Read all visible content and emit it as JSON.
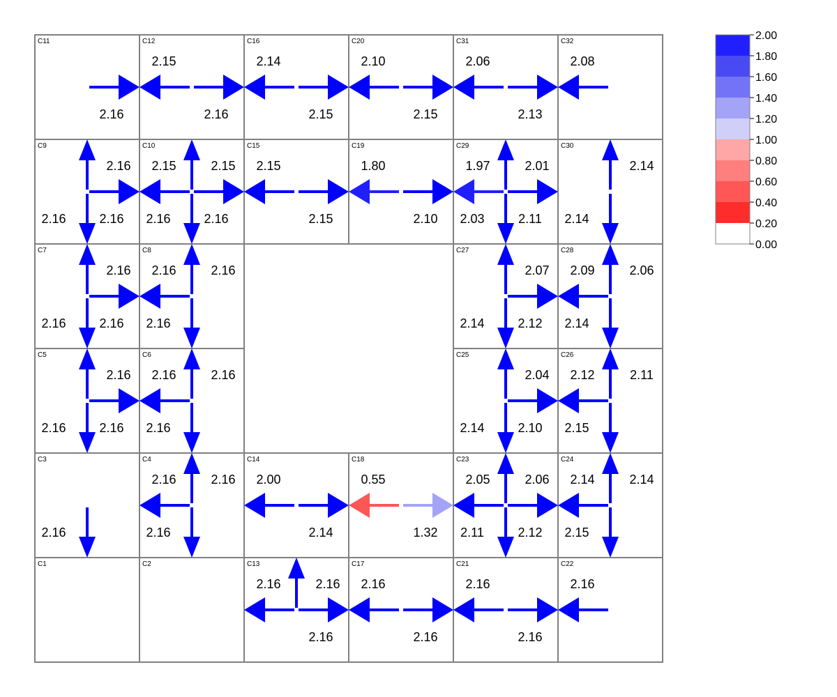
{
  "cells": [
    {
      "id": "C11",
      "col": 0,
      "row": 0
    },
    {
      "id": "C12",
      "col": 1,
      "row": 0
    },
    {
      "id": "C16",
      "col": 2,
      "row": 0
    },
    {
      "id": "C20",
      "col": 3,
      "row": 0
    },
    {
      "id": "C31",
      "col": 4,
      "row": 0
    },
    {
      "id": "C32",
      "col": 5,
      "row": 0
    },
    {
      "id": "C9",
      "col": 0,
      "row": 1
    },
    {
      "id": "C10",
      "col": 1,
      "row": 1
    },
    {
      "id": "C15",
      "col": 2,
      "row": 1
    },
    {
      "id": "C19",
      "col": 3,
      "row": 1
    },
    {
      "id": "C29",
      "col": 4,
      "row": 1
    },
    {
      "id": "C30",
      "col": 5,
      "row": 1
    },
    {
      "id": "C7",
      "col": 0,
      "row": 2
    },
    {
      "id": "C8",
      "col": 1,
      "row": 2
    },
    {
      "id": "C27",
      "col": 4,
      "row": 2
    },
    {
      "id": "C28",
      "col": 5,
      "row": 2
    },
    {
      "id": "C5",
      "col": 0,
      "row": 3
    },
    {
      "id": "C6",
      "col": 1,
      "row": 3
    },
    {
      "id": "C25",
      "col": 4,
      "row": 3
    },
    {
      "id": "C26",
      "col": 5,
      "row": 3
    },
    {
      "id": "C3",
      "col": 0,
      "row": 4
    },
    {
      "id": "C4",
      "col": 1,
      "row": 4
    },
    {
      "id": "C14",
      "col": 2,
      "row": 4
    },
    {
      "id": "C18",
      "col": 3,
      "row": 4
    },
    {
      "id": "C23",
      "col": 4,
      "row": 4
    },
    {
      "id": "C24",
      "col": 5,
      "row": 4
    },
    {
      "id": "C1",
      "col": 0,
      "row": 5
    },
    {
      "id": "C2",
      "col": 1,
      "row": 5
    },
    {
      "id": "C13",
      "col": 2,
      "row": 5
    },
    {
      "id": "C17",
      "col": 3,
      "row": 5
    },
    {
      "id": "C21",
      "col": 4,
      "row": 5
    },
    {
      "id": "C22",
      "col": 5,
      "row": 5
    }
  ],
  "arrows": [
    {
      "col": 0,
      "row": 0,
      "dir": "right",
      "value": 2.16,
      "label": "2.16",
      "lpos": "br"
    },
    {
      "col": 1,
      "row": 0,
      "dir": "left",
      "value": 2.15,
      "label": "2.15",
      "lpos": "tl"
    },
    {
      "col": 1,
      "row": 0,
      "dir": "right",
      "value": 2.16,
      "label": "2.16",
      "lpos": "br"
    },
    {
      "col": 2,
      "row": 0,
      "dir": "left",
      "value": 2.14,
      "label": "2.14",
      "lpos": "tl"
    },
    {
      "col": 2,
      "row": 0,
      "dir": "right",
      "value": 2.15,
      "label": "2.15",
      "lpos": "br"
    },
    {
      "col": 3,
      "row": 0,
      "dir": "left",
      "value": 2.1,
      "label": "2.10",
      "lpos": "tl"
    },
    {
      "col": 3,
      "row": 0,
      "dir": "right",
      "value": 2.15,
      "label": "2.15",
      "lpos": "br"
    },
    {
      "col": 4,
      "row": 0,
      "dir": "left",
      "value": 2.06,
      "label": "2.06",
      "lpos": "tl"
    },
    {
      "col": 4,
      "row": 0,
      "dir": "right",
      "value": 2.13,
      "label": "2.13",
      "lpos": "br"
    },
    {
      "col": 5,
      "row": 0,
      "dir": "left",
      "value": 2.08,
      "label": "2.08",
      "lpos": "tl"
    },
    {
      "col": 0,
      "row": 1,
      "dir": "up",
      "value": 2.16,
      "label": "2.16",
      "lpos": "tr"
    },
    {
      "col": 0,
      "row": 1,
      "dir": "down",
      "value": 2.16,
      "label": "2.16",
      "lpos": "bl"
    },
    {
      "col": 0,
      "row": 1,
      "dir": "right",
      "value": 2.16,
      "label": "2.16",
      "lpos": "br"
    },
    {
      "col": 1,
      "row": 1,
      "dir": "left",
      "value": 2.15,
      "label": "2.15",
      "lpos": "tl"
    },
    {
      "col": 1,
      "row": 1,
      "dir": "up",
      "value": 2.15,
      "label": "2.15",
      "lpos": "tr"
    },
    {
      "col": 1,
      "row": 1,
      "dir": "down",
      "value": 2.16,
      "label": "2.16",
      "lpos": "bl"
    },
    {
      "col": 1,
      "row": 1,
      "dir": "right",
      "value": 2.16,
      "label": "2.16",
      "lpos": "br"
    },
    {
      "col": 2,
      "row": 1,
      "dir": "left",
      "value": 2.15,
      "label": "2.15",
      "lpos": "tl"
    },
    {
      "col": 2,
      "row": 1,
      "dir": "right",
      "value": 2.15,
      "label": "2.15",
      "lpos": "br"
    },
    {
      "col": 3,
      "row": 1,
      "dir": "left",
      "value": 1.8,
      "label": "1.80",
      "lpos": "tl"
    },
    {
      "col": 3,
      "row": 1,
      "dir": "right",
      "value": 2.1,
      "label": "2.10",
      "lpos": "br"
    },
    {
      "col": 4,
      "row": 1,
      "dir": "left",
      "value": 1.97,
      "label": "1.97",
      "lpos": "tl"
    },
    {
      "col": 4,
      "row": 1,
      "dir": "up",
      "value": 2.01,
      "label": "2.01",
      "lpos": "tr"
    },
    {
      "col": 4,
      "row": 1,
      "dir": "down",
      "value": 2.03,
      "label": "2.03",
      "lpos": "bl"
    },
    {
      "col": 4,
      "row": 1,
      "dir": "right",
      "value": 2.11,
      "label": "2.11",
      "lpos": "br"
    },
    {
      "col": 5,
      "row": 1,
      "dir": "up",
      "value": 2.14,
      "label": "2.14",
      "lpos": "tr"
    },
    {
      "col": 5,
      "row": 1,
      "dir": "down",
      "value": 2.14,
      "label": "2.14",
      "lpos": "bl"
    },
    {
      "col": 0,
      "row": 2,
      "dir": "up",
      "value": 2.16,
      "label": "2.16",
      "lpos": "tr"
    },
    {
      "col": 0,
      "row": 2,
      "dir": "down",
      "value": 2.16,
      "label": "2.16",
      "lpos": "bl"
    },
    {
      "col": 0,
      "row": 2,
      "dir": "right",
      "value": 2.16,
      "label": "2.16",
      "lpos": "br"
    },
    {
      "col": 1,
      "row": 2,
      "dir": "left",
      "value": 2.16,
      "label": "2.16",
      "lpos": "tl"
    },
    {
      "col": 1,
      "row": 2,
      "dir": "up",
      "value": 2.16,
      "label": "2.16",
      "lpos": "tr"
    },
    {
      "col": 1,
      "row": 2,
      "dir": "down",
      "value": 2.16,
      "label": "2.16",
      "lpos": "bl"
    },
    {
      "col": 4,
      "row": 2,
      "dir": "up",
      "value": 2.07,
      "label": "2.07",
      "lpos": "tr"
    },
    {
      "col": 4,
      "row": 2,
      "dir": "down",
      "value": 2.14,
      "label": "2.14",
      "lpos": "bl"
    },
    {
      "col": 4,
      "row": 2,
      "dir": "right",
      "value": 2.12,
      "label": "2.12",
      "lpos": "br"
    },
    {
      "col": 5,
      "row": 2,
      "dir": "left",
      "value": 2.09,
      "label": "2.09",
      "lpos": "tl"
    },
    {
      "col": 5,
      "row": 2,
      "dir": "up",
      "value": 2.06,
      "label": "2.06",
      "lpos": "tr"
    },
    {
      "col": 5,
      "row": 2,
      "dir": "down",
      "value": 2.14,
      "label": "2.14",
      "lpos": "bl"
    },
    {
      "col": 0,
      "row": 3,
      "dir": "up",
      "value": 2.16,
      "label": "2.16",
      "lpos": "tr"
    },
    {
      "col": 0,
      "row": 3,
      "dir": "down",
      "value": 2.16,
      "label": "2.16",
      "lpos": "bl"
    },
    {
      "col": 0,
      "row": 3,
      "dir": "right",
      "value": 2.16,
      "label": "2.16",
      "lpos": "br"
    },
    {
      "col": 1,
      "row": 3,
      "dir": "left",
      "value": 2.16,
      "label": "2.16",
      "lpos": "tl"
    },
    {
      "col": 1,
      "row": 3,
      "dir": "up",
      "value": 2.16,
      "label": "2.16",
      "lpos": "tr"
    },
    {
      "col": 1,
      "row": 3,
      "dir": "down",
      "value": 2.16,
      "label": "2.16",
      "lpos": "bl"
    },
    {
      "col": 4,
      "row": 3,
      "dir": "up",
      "value": 2.04,
      "label": "2.04",
      "lpos": "tr"
    },
    {
      "col": 4,
      "row": 3,
      "dir": "down",
      "value": 2.14,
      "label": "2.14",
      "lpos": "bl"
    },
    {
      "col": 4,
      "row": 3,
      "dir": "right",
      "value": 2.1,
      "label": "2.10",
      "lpos": "br"
    },
    {
      "col": 5,
      "row": 3,
      "dir": "left",
      "value": 2.12,
      "label": "2.12",
      "lpos": "tl"
    },
    {
      "col": 5,
      "row": 3,
      "dir": "up",
      "value": 2.11,
      "label": "2.11",
      "lpos": "tr"
    },
    {
      "col": 5,
      "row": 3,
      "dir": "down",
      "value": 2.15,
      "label": "2.15",
      "lpos": "bl"
    },
    {
      "col": 0,
      "row": 4,
      "dir": "down",
      "value": 2.16,
      "label": "2.16",
      "lpos": "bl"
    },
    {
      "col": 1,
      "row": 4,
      "dir": "left",
      "value": 2.16,
      "label": "2.16",
      "lpos": "tl"
    },
    {
      "col": 1,
      "row": 4,
      "dir": "up",
      "value": 2.16,
      "label": "2.16",
      "lpos": "tr"
    },
    {
      "col": 1,
      "row": 4,
      "dir": "down",
      "value": 2.16,
      "label": "2.16",
      "lpos": "bl"
    },
    {
      "col": 2,
      "row": 4,
      "dir": "left",
      "value": 2.0,
      "label": "2.00",
      "lpos": "tl"
    },
    {
      "col": 2,
      "row": 4,
      "dir": "right",
      "value": 2.14,
      "label": "2.14",
      "lpos": "br"
    },
    {
      "col": 3,
      "row": 4,
      "dir": "left",
      "value": 0.55,
      "label": "0.55",
      "lpos": "tl"
    },
    {
      "col": 3,
      "row": 4,
      "dir": "right",
      "value": 1.32,
      "label": "1.32",
      "lpos": "br"
    },
    {
      "col": 4,
      "row": 4,
      "dir": "left",
      "value": 2.05,
      "label": "2.05",
      "lpos": "tl"
    },
    {
      "col": 4,
      "row": 4,
      "dir": "up",
      "value": 2.06,
      "label": "2.06",
      "lpos": "tr"
    },
    {
      "col": 4,
      "row": 4,
      "dir": "down",
      "value": 2.11,
      "label": "2.11",
      "lpos": "bl"
    },
    {
      "col": 4,
      "row": 4,
      "dir": "right",
      "value": 2.12,
      "label": "2.12",
      "lpos": "br"
    },
    {
      "col": 5,
      "row": 4,
      "dir": "left",
      "value": 2.14,
      "label": "2.14",
      "lpos": "tl"
    },
    {
      "col": 5,
      "row": 4,
      "dir": "up",
      "value": 2.14,
      "label": "2.14",
      "lpos": "tr"
    },
    {
      "col": 5,
      "row": 4,
      "dir": "down",
      "value": 2.15,
      "label": "2.15",
      "lpos": "bl"
    },
    {
      "col": 2,
      "row": 5,
      "dir": "left",
      "value": 2.16,
      "label": "2.16",
      "lpos": "tl"
    },
    {
      "col": 2,
      "row": 5,
      "dir": "up",
      "value": 2.16,
      "label": "2.16",
      "lpos": "tr"
    },
    {
      "col": 2,
      "row": 5,
      "dir": "right",
      "value": 2.16,
      "label": "2.16",
      "lpos": "br"
    },
    {
      "col": 3,
      "row": 5,
      "dir": "left",
      "value": 2.16,
      "label": "2.16",
      "lpos": "tl"
    },
    {
      "col": 3,
      "row": 5,
      "dir": "right",
      "value": 2.16,
      "label": "2.16",
      "lpos": "br"
    },
    {
      "col": 4,
      "row": 5,
      "dir": "left",
      "value": 2.16,
      "label": "2.16",
      "lpos": "tl"
    },
    {
      "col": 4,
      "row": 5,
      "dir": "right",
      "value": 2.16,
      "label": "2.16",
      "lpos": "br"
    },
    {
      "col": 5,
      "row": 5,
      "dir": "left",
      "value": 2.16,
      "label": "2.16",
      "lpos": "tl"
    }
  ],
  "colorbar": {
    "ticks": [
      "2.00",
      "1.80",
      "1.60",
      "1.40",
      "1.20",
      "1.00",
      "0.80",
      "0.60",
      "0.40",
      "0.20",
      "0.00"
    ],
    "bands": [
      "#2020ff",
      "#4a4af5",
      "#7373f7",
      "#a3a3f7",
      "#cfcffa",
      "#ffa6a6",
      "#ff7e7e",
      "#ff5656",
      "#ff2c2c",
      "#ffffff"
    ]
  },
  "colors": {
    "grid": "#808080",
    "max_value_color": "#0000ff"
  }
}
